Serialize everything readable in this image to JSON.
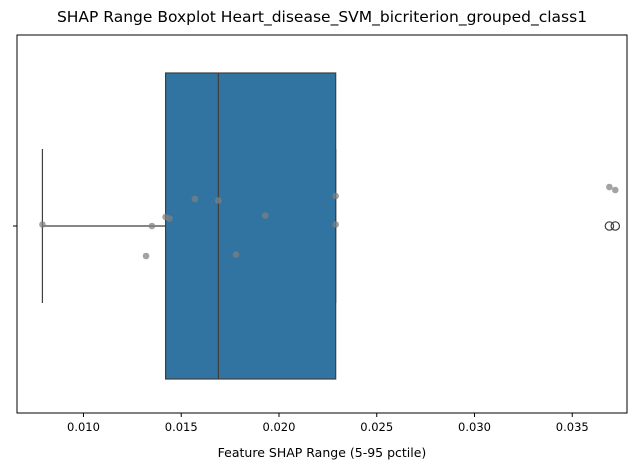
{
  "chart_data": {
    "type": "boxplot",
    "title": "SHAP Range Boxplot Heart_disease_SVM_bicriterion_grouped_class1",
    "xlabel": "Feature SHAP Range (5-95 pctile)",
    "ylabel": "",
    "xlim": [
      0.0066,
      0.0378
    ],
    "x_ticks": [
      0.01,
      0.015,
      0.02,
      0.025,
      0.03,
      0.035
    ],
    "x_tick_labels": [
      "0.010",
      "0.015",
      "0.020",
      "0.025",
      "0.030",
      "0.035"
    ],
    "orientation": "horizontal",
    "box": {
      "whisker_low": 0.0079,
      "q1": 0.0142,
      "median": 0.0169,
      "q3": 0.0229,
      "whisker_high": 0.0229,
      "outliers": [
        0.0369,
        0.0372
      ]
    },
    "points": [
      {
        "x": 0.0079,
        "y": 0.005
      },
      {
        "x": 0.0132,
        "y": -0.1
      },
      {
        "x": 0.0135,
        "y": 0.0
      },
      {
        "x": 0.0142,
        "y": 0.03
      },
      {
        "x": 0.0144,
        "y": 0.025
      },
      {
        "x": 0.0157,
        "y": 0.09
      },
      {
        "x": 0.0169,
        "y": 0.085
      },
      {
        "x": 0.0178,
        "y": -0.095
      },
      {
        "x": 0.0193,
        "y": 0.035
      },
      {
        "x": 0.0229,
        "y": 0.1
      },
      {
        "x": 0.0229,
        "y": 0.005
      },
      {
        "x": 0.0369,
        "y": 0.13
      },
      {
        "x": 0.0372,
        "y": 0.12
      }
    ],
    "colors": {
      "box_fill": "#3274a1",
      "line": "#3f3f3f",
      "points": "#7f7f7f"
    },
    "grid": false,
    "legend": "none"
  }
}
